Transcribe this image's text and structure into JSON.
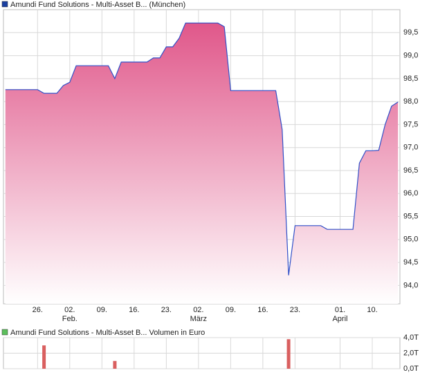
{
  "chart_data": [
    {
      "type": "area",
      "title": "Amundi Fund Solutions - Multi-Asset B... (München)",
      "legend_color": "#1a3fa0",
      "color": "#2f4fc8",
      "fill_top": "#e0578a",
      "fill_bottom": "#ffffff",
      "x": [
        0,
        1,
        2,
        3,
        4,
        5,
        6,
        7,
        8,
        9,
        10,
        11,
        12,
        13,
        14,
        15,
        16,
        17,
        18,
        19,
        20,
        21,
        22,
        23,
        24,
        25,
        26,
        27,
        28,
        29,
        30,
        31,
        32,
        33,
        34,
        35,
        36,
        37,
        38,
        39,
        40,
        41,
        42,
        43,
        44,
        45,
        46,
        47,
        48,
        49,
        50,
        51,
        52,
        53,
        54,
        55,
        56,
        57,
        58,
        59,
        60,
        61
      ],
      "values": [
        98.26,
        98.26,
        98.26,
        98.26,
        98.26,
        98.26,
        98.18,
        98.18,
        98.18,
        98.35,
        98.42,
        98.78,
        98.78,
        98.78,
        98.78,
        98.78,
        98.78,
        98.5,
        98.86,
        98.86,
        98.86,
        98.86,
        98.86,
        98.95,
        98.95,
        99.19,
        99.19,
        99.38,
        99.71,
        99.71,
        99.71,
        99.71,
        99.71,
        99.71,
        99.63,
        98.24,
        98.24,
        98.24,
        98.24,
        98.24,
        98.24,
        98.24,
        98.24,
        97.39,
        94.22,
        95.3,
        95.3,
        95.3,
        95.3,
        95.3,
        95.22,
        95.22,
        95.22,
        95.22,
        95.22,
        96.66,
        96.93,
        96.93,
        96.94,
        97.5,
        97.9,
        97.99
      ],
      "xlim": [
        -0.3,
        61.3
      ],
      "xticks": [
        {
          "value": 5,
          "label": "26."
        },
        {
          "value": 10,
          "label": "02."
        },
        {
          "value": 15,
          "label": "09."
        },
        {
          "value": 20,
          "label": "16."
        },
        {
          "value": 25,
          "label": "23."
        },
        {
          "value": 30,
          "label": "02."
        },
        {
          "value": 35,
          "label": "09."
        },
        {
          "value": 40,
          "label": "16."
        },
        {
          "value": 45,
          "label": "23."
        },
        {
          "value": 52,
          "label": "01."
        },
        {
          "value": 57,
          "label": "10."
        }
      ],
      "month_labels": [
        {
          "value": 10,
          "label": "Feb."
        },
        {
          "value": 30,
          "label": "März"
        },
        {
          "value": 52,
          "label": "April"
        }
      ],
      "ylim": [
        93.6,
        100.0
      ],
      "yticks": [
        {
          "value": 94,
          "label": "94,0"
        },
        {
          "value": 94.5,
          "label": "94,5"
        },
        {
          "value": 95,
          "label": "95,0"
        },
        {
          "value": 95.5,
          "label": "95,5"
        },
        {
          "value": 96,
          "label": "96,0"
        },
        {
          "value": 96.5,
          "label": "96,5"
        },
        {
          "value": 97,
          "label": "97,0"
        },
        {
          "value": 97.5,
          "label": "97,5"
        },
        {
          "value": 98,
          "label": "98,0"
        },
        {
          "value": 98.5,
          "label": "98,5"
        },
        {
          "value": 99,
          "label": "99,0"
        },
        {
          "value": 99.5,
          "label": "99,5"
        }
      ],
      "grid": true
    },
    {
      "type": "bar",
      "title": "Amundi Fund Solutions - Multi-Asset B... Volumen in Euro",
      "legend_color": "#5cbf5c",
      "color": "#d95f5f",
      "x": [
        6,
        17,
        44
      ],
      "values": [
        3.0,
        1.0,
        3.8
      ],
      "xlim": [
        -0.3,
        61.3
      ],
      "xticks": [
        5,
        10,
        15,
        20,
        25,
        30,
        35,
        40,
        45,
        52,
        57
      ],
      "ylim": [
        0,
        4
      ],
      "yticks": [
        {
          "value": 0,
          "label": "0,0T"
        },
        {
          "value": 2,
          "label": "2,0T"
        },
        {
          "value": 4,
          "label": "4,0T"
        }
      ],
      "grid": true
    }
  ]
}
